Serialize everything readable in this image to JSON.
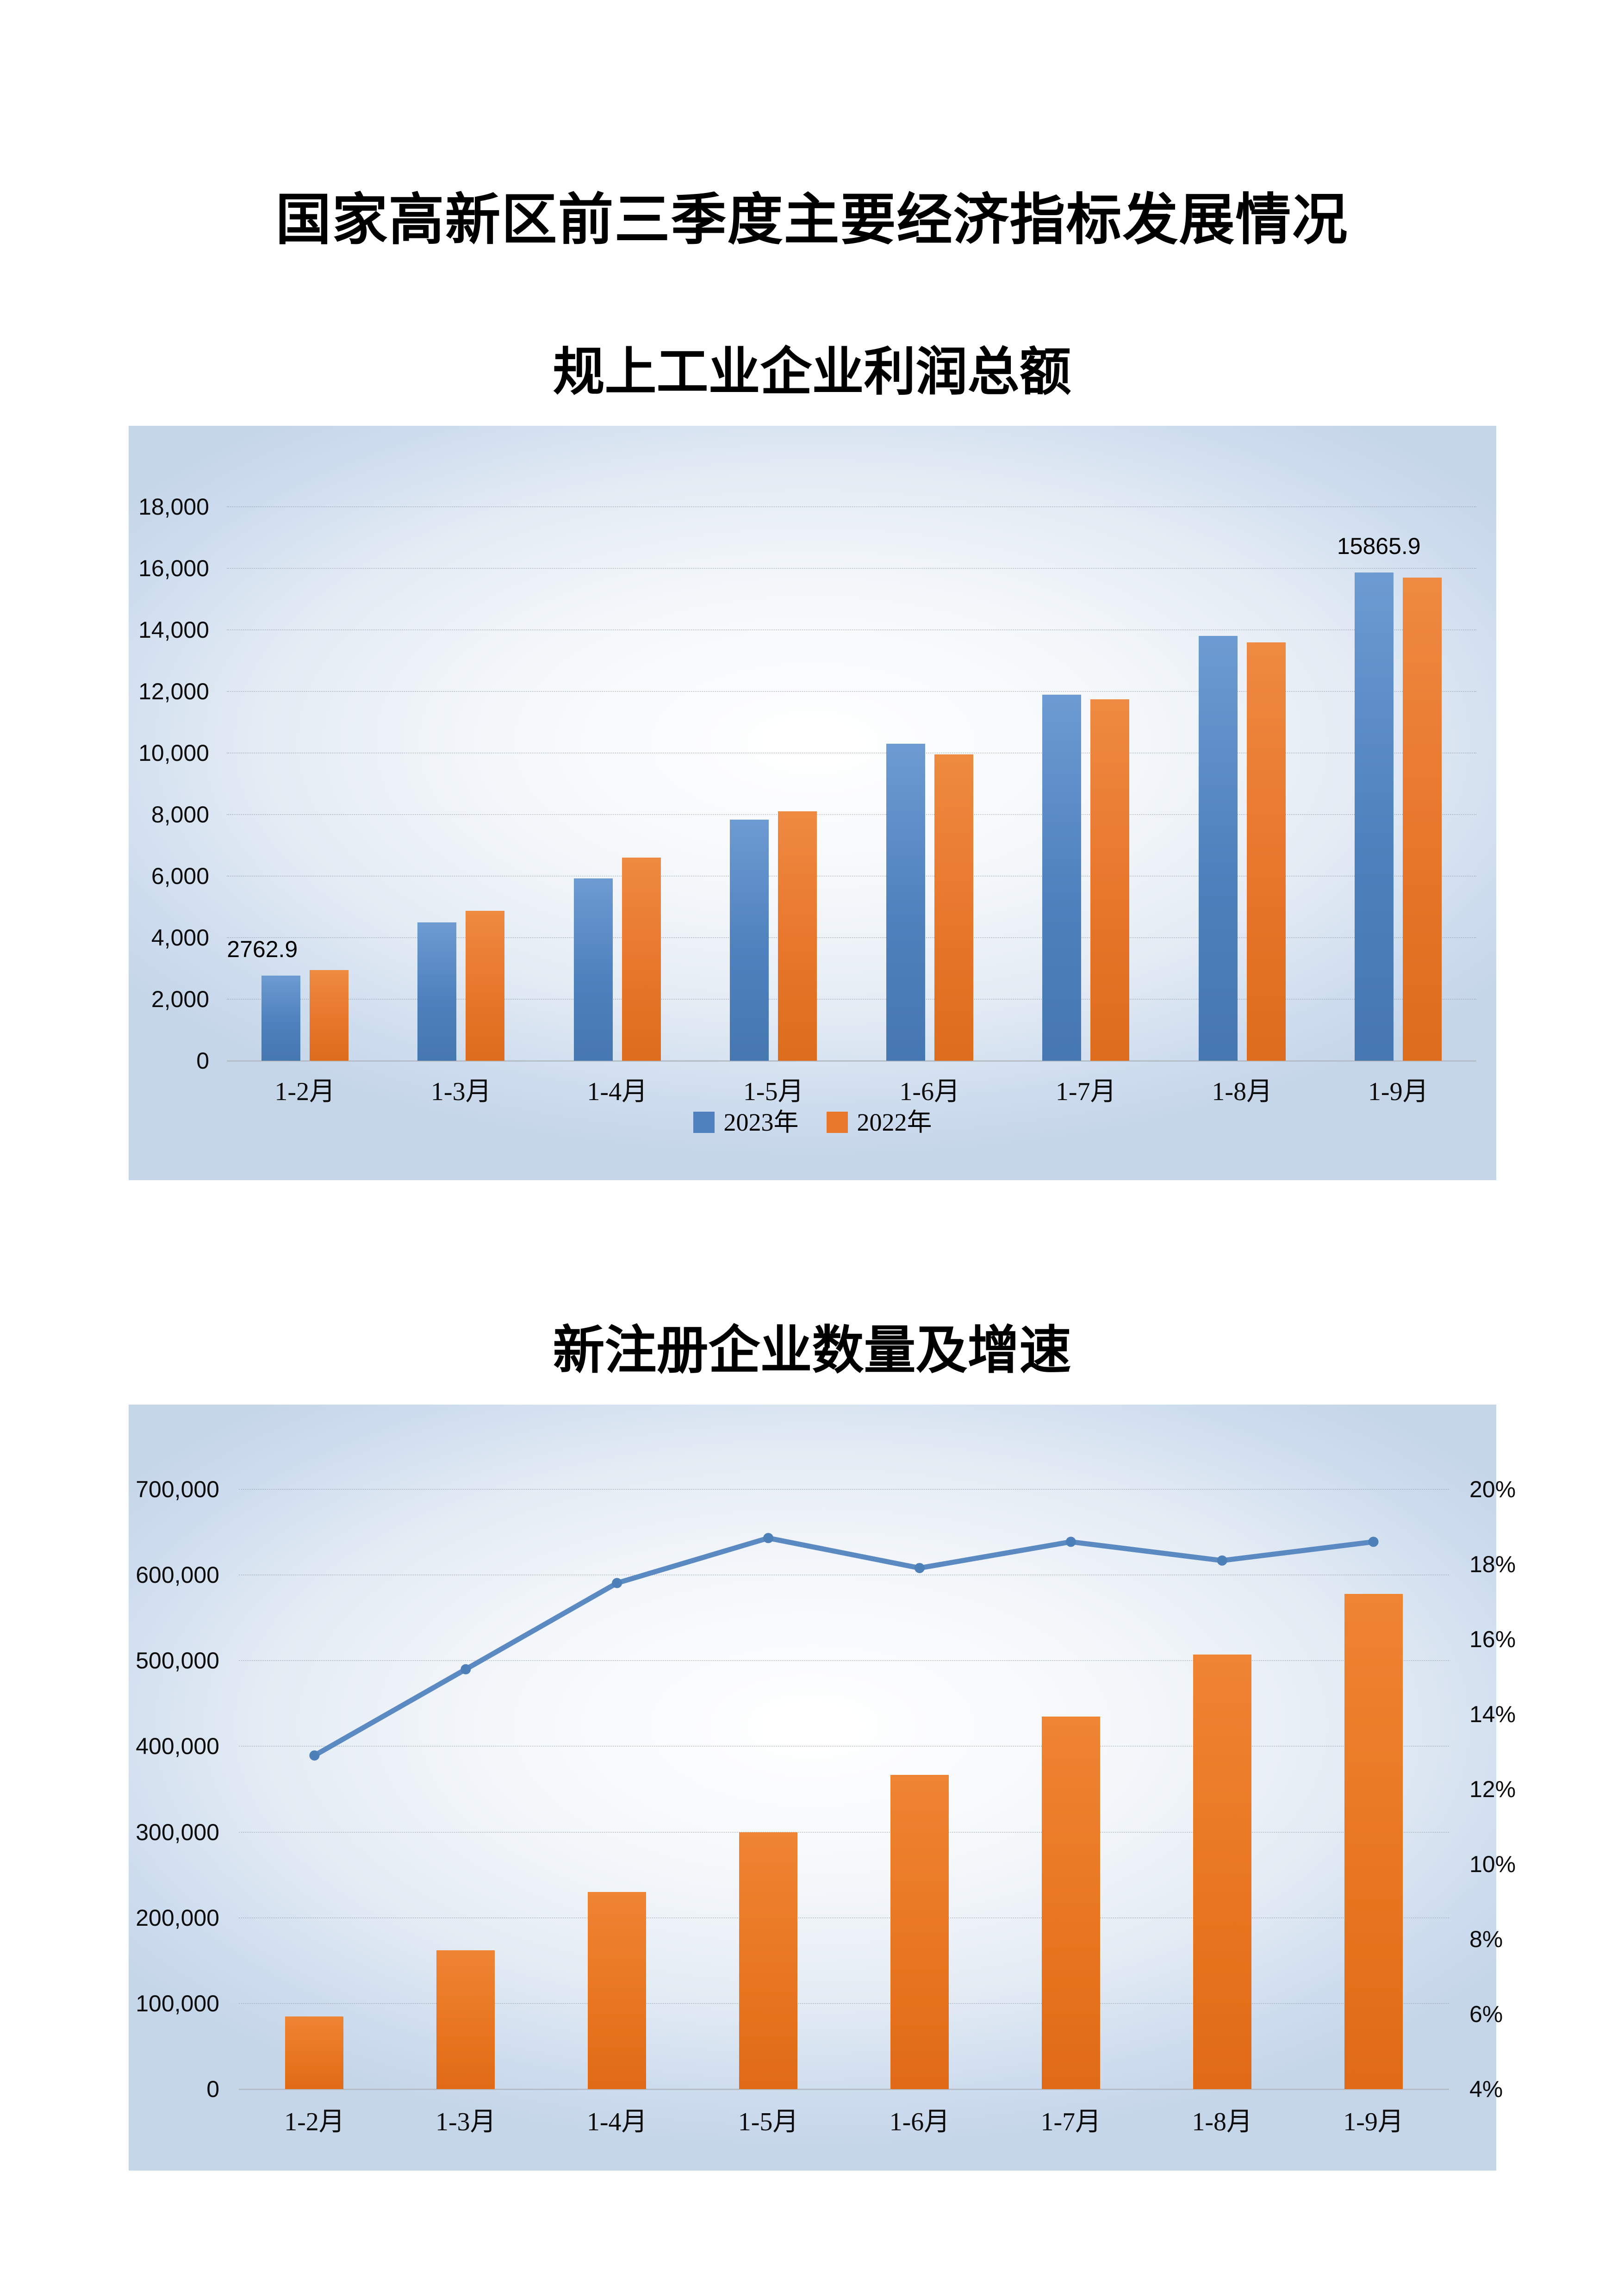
{
  "page": {
    "title": "国家高新区前三季度主要经济指标发展情况"
  },
  "chart_data": [
    {
      "type": "bar",
      "title": "规上工业企业利润总额",
      "categories": [
        "1-2月",
        "1-3月",
        "1-4月",
        "1-5月",
        "1-6月",
        "1-7月",
        "1-8月",
        "1-9月"
      ],
      "series": [
        {
          "name": "2023年",
          "color": "#4e81bd",
          "values": [
            2762.9,
            4500,
            5930,
            7840,
            10300,
            11900,
            13800,
            15865.9
          ]
        },
        {
          "name": "2022年",
          "color": "#e8762b",
          "values": [
            2950,
            4870,
            6600,
            8100,
            9950,
            11750,
            13600,
            15700
          ]
        }
      ],
      "ylim": [
        0,
        18000
      ],
      "yticks": [
        "0",
        "2,000",
        "4,000",
        "6,000",
        "8,000",
        "10,000",
        "12,000",
        "14,000",
        "16,000",
        "18,000"
      ],
      "grid": true,
      "legend_position": "bottom",
      "data_labels": [
        {
          "series_index": 0,
          "category_index": 0,
          "text": "2762.9"
        },
        {
          "series_index": 0,
          "category_index": 7,
          "text": "15865.9"
        }
      ]
    },
    {
      "type": "bar+line",
      "title": "新注册企业数量及增速",
      "categories": [
        "1-2月",
        "1-3月",
        "1-4月",
        "1-5月",
        "1-6月",
        "1-7月",
        "1-8月",
        "1-9月"
      ],
      "bars": {
        "axis": "left",
        "color": "#e8751f",
        "values": [
          85000,
          162000,
          230000,
          300000,
          367000,
          435000,
          507000,
          578000
        ]
      },
      "line": {
        "axis": "right",
        "color": "#5b8ac2",
        "marker_color": "#4d7fb9",
        "values": [
          12.9,
          15.2,
          17.5,
          18.7,
          17.9,
          18.6,
          18.1,
          18.6
        ]
      },
      "left_ylim": [
        0,
        700000
      ],
      "left_yticks": [
        "0",
        "100,000",
        "200,000",
        "300,000",
        "400,000",
        "500,000",
        "600,000",
        "700,000"
      ],
      "right_ylim": [
        4,
        20
      ],
      "right_yticks": [
        "4%",
        "6%",
        "8%",
        "10%",
        "12%",
        "14%",
        "16%",
        "18%",
        "20%"
      ],
      "grid": true,
      "legend_position": "none"
    }
  ]
}
